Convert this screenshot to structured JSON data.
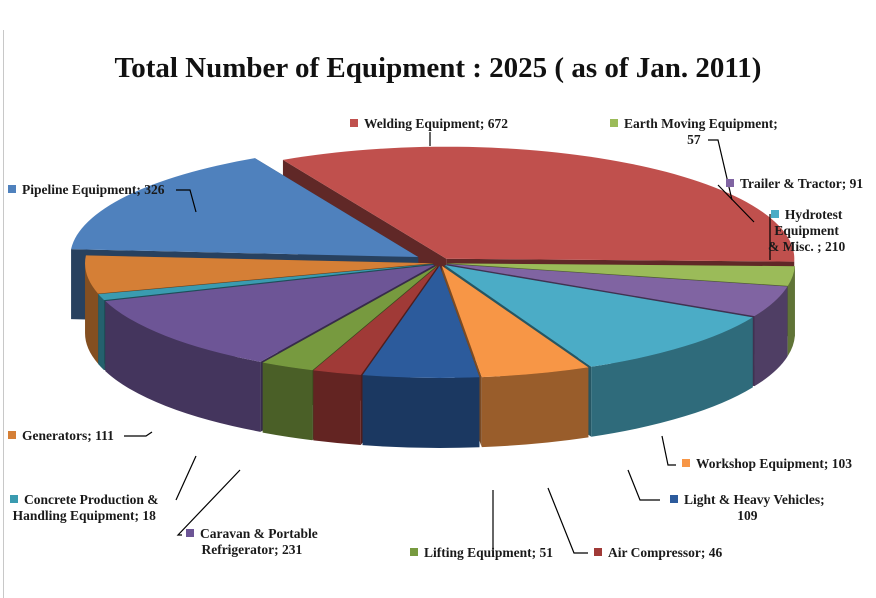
{
  "chart_data": {
    "type": "pie",
    "title": "Total Number of Equipment : 2025 ( as of Jan. 2011)",
    "total": 2025,
    "labels": [
      "Welding Equipment; 672",
      "Earth Moving Equipment; 57",
      "Trailer & Tractor; 91",
      "Hydrotest Equipment & Misc. ; 210",
      "Workshop Equipment; 103",
      "Light & Heavy Vehicles; 109",
      "Air Compressor; 46",
      "Lifting Equipment; 51",
      "Caravan & Portable Refrigerator; 231",
      "Concrete Production & Handling Equipment; 18",
      "Generators; 111",
      "Pipeline Equipment; 326"
    ],
    "slices": [
      {
        "name": "Welding Equipment",
        "value": 672,
        "color": "#c0504d"
      },
      {
        "name": "Earth Moving Equipment",
        "value": 57,
        "color": "#9bbb59"
      },
      {
        "name": "Trailer & Tractor",
        "value": 91,
        "color": "#8064a2"
      },
      {
        "name": "Hydrotest Equipment & Misc.",
        "value": 210,
        "color": "#4bacc6"
      },
      {
        "name": "Workshop Equipment",
        "value": 103,
        "color": "#f79646"
      },
      {
        "name": "Light & Heavy Vehicles",
        "value": 109,
        "color": "#2c5b9c"
      },
      {
        "name": "Air Compressor",
        "value": 46,
        "color": "#a03a37"
      },
      {
        "name": "Lifting Equipment",
        "value": 51,
        "color": "#779a3f"
      },
      {
        "name": "Caravan & Portable Refrigerator",
        "value": 231,
        "color": "#6d5596"
      },
      {
        "name": "Concrete Production & Handling Equipment",
        "value": 18,
        "color": "#3a9bb0"
      },
      {
        "name": "Generators",
        "value": 111,
        "color": "#d57f36"
      },
      {
        "name": "Pipeline Equipment",
        "value": 326,
        "color": "#4f81bd"
      }
    ],
    "legend": "none",
    "data_labels": "outside with leader lines"
  }
}
